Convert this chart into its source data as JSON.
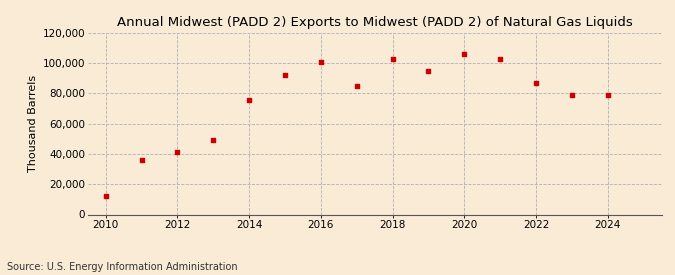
{
  "title": "Annual Midwest (PADD 2) Exports to Midwest (PADD 2) of Natural Gas Liquids",
  "ylabel": "Thousand Barrels",
  "source": "Source: U.S. Energy Information Administration",
  "background_color": "#faebd7",
  "marker_color": "#cc0000",
  "years": [
    2010,
    2011,
    2012,
    2013,
    2014,
    2015,
    2016,
    2017,
    2018,
    2019,
    2020,
    2021,
    2022,
    2023,
    2024
  ],
  "values": [
    12000,
    36000,
    41000,
    49000,
    76000,
    92000,
    101000,
    85000,
    103000,
    95000,
    106000,
    103000,
    87000,
    79000,
    79000
  ],
  "ylim": [
    0,
    120000
  ],
  "xlim": [
    2009.5,
    2025.5
  ],
  "yticks": [
    0,
    20000,
    40000,
    60000,
    80000,
    100000,
    120000
  ],
  "xticks": [
    2010,
    2012,
    2014,
    2016,
    2018,
    2020,
    2022,
    2024
  ],
  "title_fontsize": 9.5,
  "label_fontsize": 8,
  "tick_fontsize": 7.5,
  "source_fontsize": 7
}
